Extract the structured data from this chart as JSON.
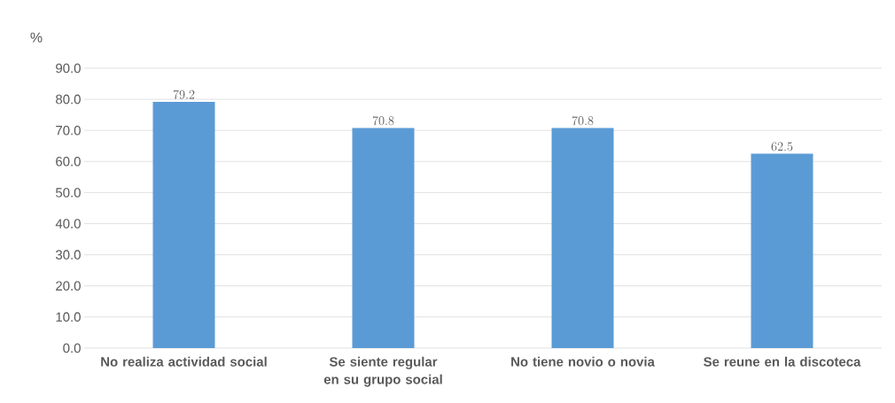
{
  "chart_data": {
    "type": "bar",
    "ylabel": "%",
    "categories": [
      "No realiza actividad social",
      "Se siente regular en su grupo social",
      "No tiene novio o novia",
      "Se reune en la discoteca"
    ],
    "values": [
      79.2,
      70.8,
      70.8,
      62.5
    ],
    "color": "#5b9bd5",
    "ylim": [
      0,
      90
    ],
    "yticks": [
      {
        "value": 0,
        "label": "0.0"
      },
      {
        "value": 10,
        "label": "10.0"
      },
      {
        "value": 20,
        "label": "20.0"
      },
      {
        "value": 30,
        "label": "30.0"
      },
      {
        "value": 40,
        "label": "40.0"
      },
      {
        "value": 50,
        "label": "50.0"
      },
      {
        "value": 60,
        "label": "60.0"
      },
      {
        "value": 70,
        "label": "70.0"
      },
      {
        "value": 80,
        "label": "80.0"
      },
      {
        "value": 90,
        "label": "90.0"
      }
    ],
    "grid": "y",
    "data_labels": true
  }
}
